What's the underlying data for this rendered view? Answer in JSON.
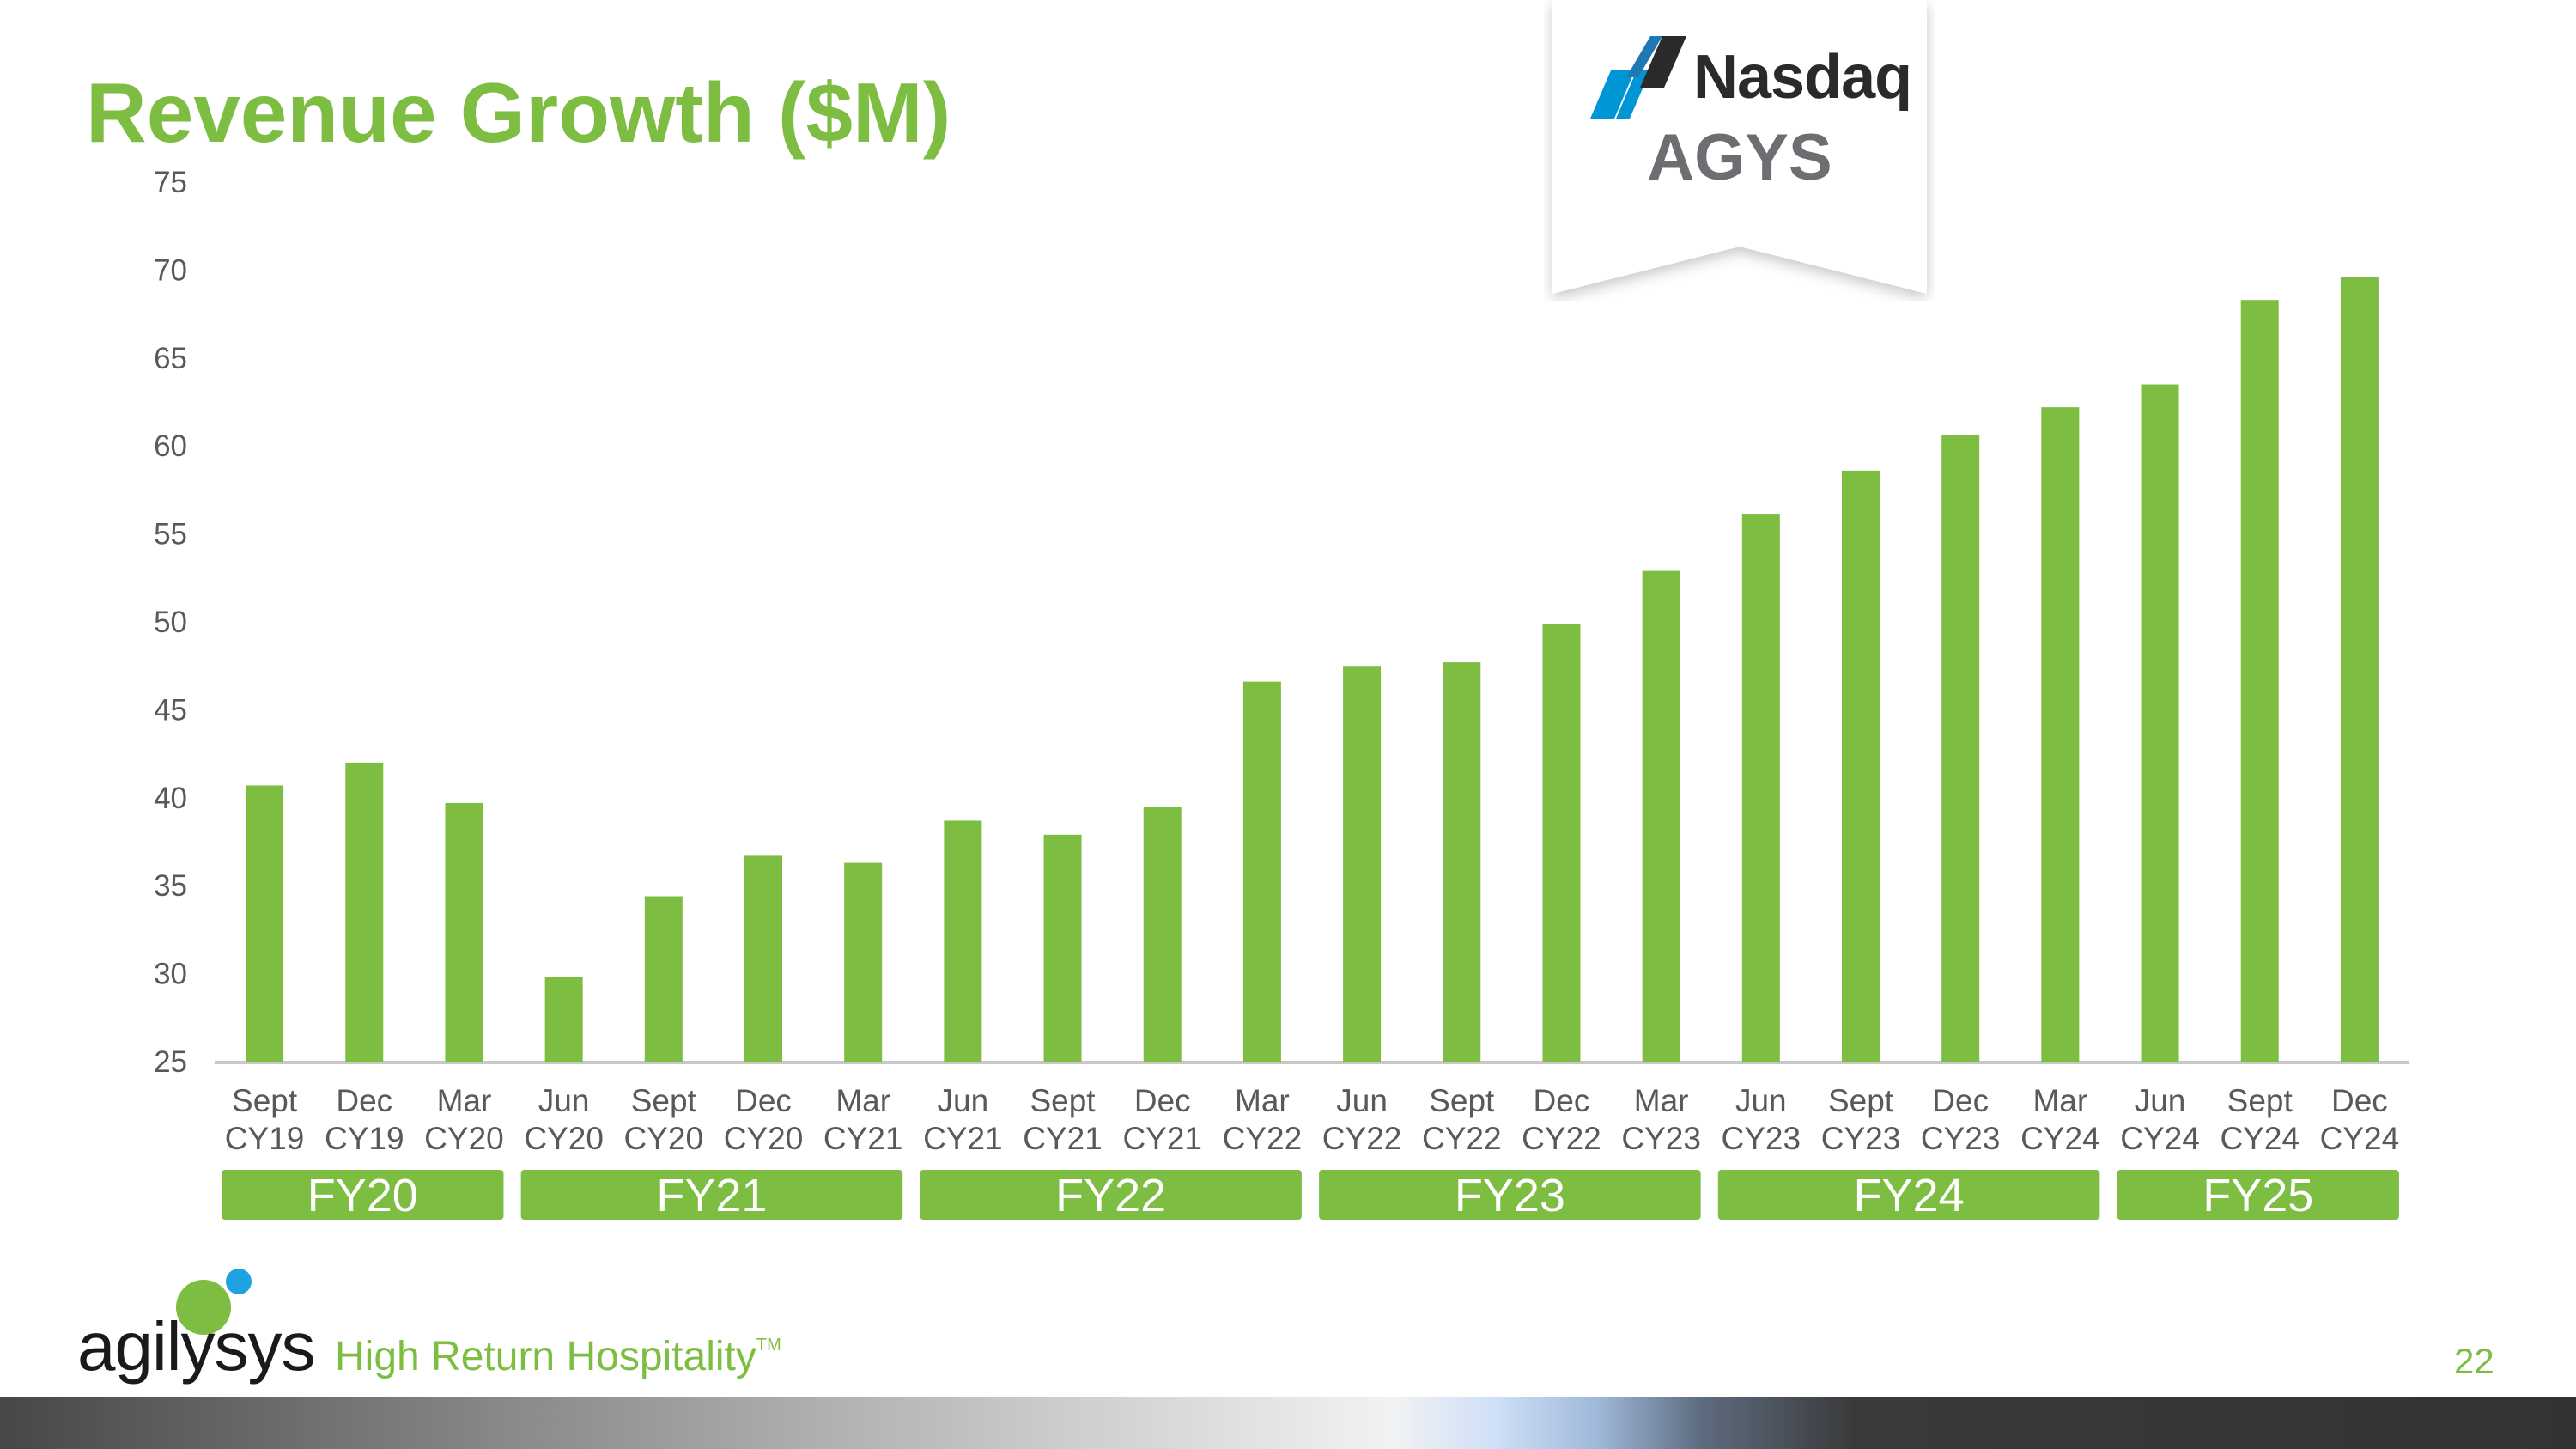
{
  "title": "Revenue Growth ($M)",
  "badge": {
    "exchange": "Nasdaq",
    "ticker": "AGYS"
  },
  "chart_data": {
    "type": "bar",
    "title": "Revenue Growth ($M)",
    "xlabel": "",
    "ylabel": "",
    "ylim": [
      25,
      75
    ],
    "yticks": [
      25,
      30,
      35,
      40,
      45,
      50,
      55,
      60,
      65,
      70,
      75
    ],
    "grid": false,
    "color": "#7cbd42",
    "categories": [
      [
        "Sept",
        "CY19"
      ],
      [
        "Dec",
        "CY19"
      ],
      [
        "Mar",
        "CY20"
      ],
      [
        "Jun",
        "CY20"
      ],
      [
        "Sept",
        "CY20"
      ],
      [
        "Dec",
        "CY20"
      ],
      [
        "Mar",
        "CY21"
      ],
      [
        "Jun",
        "CY21"
      ],
      [
        "Sept",
        "CY21"
      ],
      [
        "Dec",
        "CY21"
      ],
      [
        "Mar",
        "CY22"
      ],
      [
        "Jun",
        "CY22"
      ],
      [
        "Sept",
        "CY22"
      ],
      [
        "Dec",
        "CY22"
      ],
      [
        "Mar",
        "CY23"
      ],
      [
        "Jun",
        "CY23"
      ],
      [
        "Sept",
        "CY23"
      ],
      [
        "Dec",
        "CY23"
      ],
      [
        "Mar",
        "CY24"
      ],
      [
        "Jun",
        "CY24"
      ],
      [
        "Sept",
        "CY24"
      ],
      [
        "Dec",
        "CY24"
      ]
    ],
    "values": [
      40.7,
      42.0,
      39.7,
      29.8,
      34.4,
      36.7,
      36.3,
      38.7,
      37.9,
      39.5,
      46.6,
      47.5,
      47.7,
      49.9,
      52.9,
      56.1,
      58.6,
      60.6,
      62.2,
      63.5,
      68.3,
      69.6
    ],
    "fiscal_groups": [
      {
        "label": "FY20",
        "start": 0,
        "end": 2
      },
      {
        "label": "FY21",
        "start": 3,
        "end": 6
      },
      {
        "label": "FY22",
        "start": 7,
        "end": 10
      },
      {
        "label": "FY23",
        "start": 11,
        "end": 14
      },
      {
        "label": "FY24",
        "start": 15,
        "end": 18
      },
      {
        "label": "FY25",
        "start": 19,
        "end": 21
      }
    ]
  },
  "footer": {
    "logo_text": "agilysys",
    "tagline": "High Return Hospitality",
    "trademark": "TM",
    "page_number": "22"
  },
  "colors": {
    "accent": "#7cbd42",
    "logo_blue": "#1ea3e0",
    "text_gray": "#595959"
  }
}
